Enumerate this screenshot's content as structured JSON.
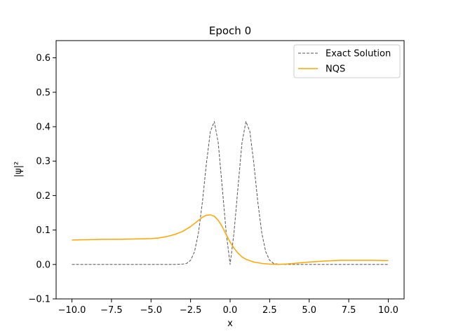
{
  "chart_data": {
    "type": "line",
    "title": "Epoch 0",
    "xlabel": "x",
    "ylabel": "|ψ|²",
    "xlim": [
      -11,
      11
    ],
    "ylim": [
      -0.1,
      0.65
    ],
    "xticks": [
      -10.0,
      -7.5,
      -5.0,
      -2.5,
      0.0,
      2.5,
      5.0,
      7.5,
      10.0
    ],
    "xtick_labels": [
      "−10.0",
      "−7.5",
      "−5.0",
      "−2.5",
      "0.0",
      "2.5",
      "5.0",
      "7.5",
      "10.0"
    ],
    "yticks": [
      -0.1,
      0.0,
      0.1,
      0.2,
      0.3,
      0.4,
      0.5,
      0.6
    ],
    "ytick_labels": [
      "−0.1",
      "0.0",
      "0.1",
      "0.2",
      "0.3",
      "0.4",
      "0.5",
      "0.6"
    ],
    "grid": false,
    "legend_position": "top-right",
    "series": [
      {
        "name": "Exact Solution",
        "style": "dashed",
        "color": "#555555",
        "x": [
          -10,
          -3.5,
          -3.0,
          -2.75,
          -2.5,
          -2.25,
          -2.0,
          -1.75,
          -1.5,
          -1.25,
          -1.0,
          -0.75,
          -0.5,
          -0.25,
          0.0,
          0.25,
          0.5,
          0.75,
          1.0,
          1.25,
          1.5,
          1.75,
          2.0,
          2.25,
          2.5,
          2.75,
          3.0,
          3.5,
          10
        ],
        "y": [
          0.0,
          0.0,
          0.001,
          0.003,
          0.012,
          0.037,
          0.092,
          0.182,
          0.293,
          0.386,
          0.415,
          0.353,
          0.225,
          0.094,
          0.0,
          0.094,
          0.225,
          0.353,
          0.415,
          0.386,
          0.293,
          0.182,
          0.092,
          0.037,
          0.012,
          0.003,
          0.001,
          0.0,
          0.0
        ]
      },
      {
        "name": "NQS",
        "style": "solid",
        "color": "#ffa500",
        "x": [
          -10,
          -9,
          -8,
          -7,
          -6,
          -5,
          -4.5,
          -4,
          -3.5,
          -3,
          -2.5,
          -2,
          -1.75,
          -1.5,
          -1.25,
          -1,
          -0.75,
          -0.5,
          -0.25,
          0,
          0.25,
          0.5,
          0.75,
          1,
          1.5,
          2,
          2.5,
          3,
          3.5,
          4,
          5,
          6,
          7,
          8,
          9,
          10
        ],
        "y": [
          0.071,
          0.072,
          0.073,
          0.073,
          0.074,
          0.075,
          0.077,
          0.081,
          0.087,
          0.096,
          0.11,
          0.128,
          0.137,
          0.143,
          0.144,
          0.14,
          0.128,
          0.11,
          0.087,
          0.065,
          0.047,
          0.033,
          0.022,
          0.015,
          0.007,
          0.003,
          0.001,
          0.0,
          0.001,
          0.003,
          0.007,
          0.01,
          0.012,
          0.012,
          0.012,
          0.011
        ]
      }
    ]
  }
}
